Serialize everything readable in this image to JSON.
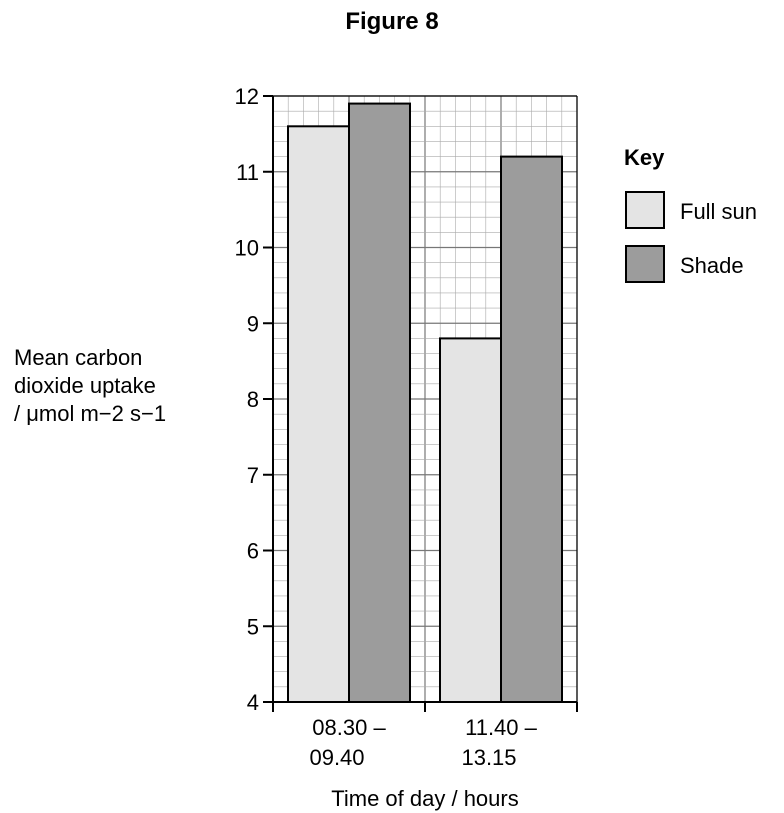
{
  "figure_title": "Figure 8",
  "y_axis_label_lines": [
    "Mean carbon",
    "dioxide uptake",
    "/ μmol m−2 s−1"
  ],
  "key_title": "Key",
  "colors": {
    "full_sun": "#e4e4e4",
    "shade": "#9c9c9c",
    "grid_minor": "#aaaaaa",
    "grid_major": "#777777"
  },
  "chart_data": {
    "type": "bar",
    "title": "Figure 8",
    "xlabel": "Time of day / hours",
    "ylabel": "Mean carbon dioxide uptake / μmol m−2 s−1",
    "ylim": [
      4,
      12
    ],
    "yticks": [
      4,
      5,
      6,
      7,
      8,
      9,
      10,
      11,
      12
    ],
    "grid": true,
    "legend_position": "right",
    "categories": [
      {
        "line1": "08.30 –",
        "line2": "09.40"
      },
      {
        "line1": "11.40 –",
        "line2": "13.15"
      }
    ],
    "series": [
      {
        "name": "Full sun",
        "values": [
          11.6,
          8.8
        ]
      },
      {
        "name": "Shade",
        "values": [
          11.9,
          11.2
        ]
      }
    ]
  }
}
